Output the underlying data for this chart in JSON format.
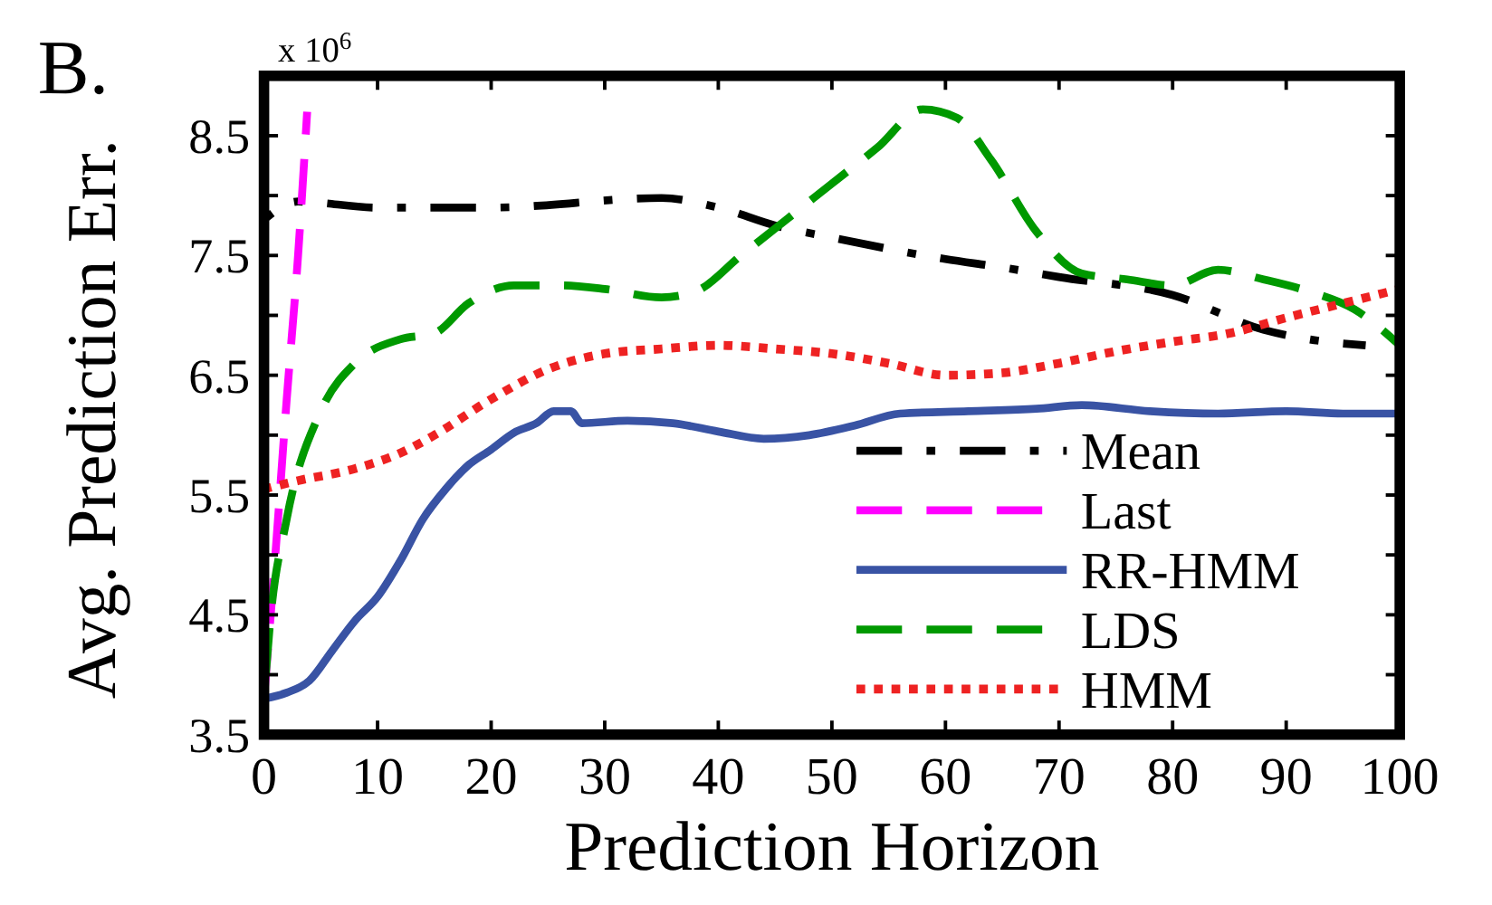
{
  "chart_data": {
    "type": "line",
    "title": "B.",
    "xlabel": "Prediction Horizon",
    "ylabel": "Avg. Prediction Err.",
    "annotations": [
      "x 10$^{6}$"
    ],
    "xlim": [
      0,
      100
    ],
    "xticks": [
      0,
      10,
      20,
      30,
      40,
      50,
      60,
      70,
      80,
      90,
      100
    ],
    "ylim": [
      3.5,
      9.0
    ],
    "yticks": [
      3.5,
      {
        "value": 4,
        "label": null
      },
      4.5,
      {
        "value": 5,
        "label": null
      },
      5.5,
      {
        "value": 6,
        "label": null
      },
      6.5,
      {
        "value": 7,
        "label": null
      },
      7.5,
      {
        "value": 8,
        "label": null
      },
      8.5
    ],
    "grid": false,
    "legend": "bottom right",
    "marker": "none",
    "series": [
      {
        "name": "Mean",
        "color": "#000000",
        "line_style": "dashdot",
        "x": [
          0,
          3,
          10,
          20,
          35,
          40,
          45,
          50,
          60,
          65,
          70,
          80,
          88,
          92,
          97
        ],
        "values": [
          7.8,
          7.95,
          7.9,
          7.9,
          7.98,
          7.9,
          7.75,
          7.65,
          7.47,
          7.4,
          7.32,
          7.17,
          6.88,
          6.8,
          6.75
        ]
      },
      {
        "name": "Last",
        "color": "#ff00ff",
        "line_style": "dashed",
        "x": [
          0,
          1,
          2,
          3,
          3.8
        ],
        "values": [
          3.8,
          5.0,
          6.3,
          7.5,
          8.7
        ]
      },
      {
        "name": "RR-HMM",
        "color": "#3953a4",
        "line_style": "solid",
        "x": [
          0,
          2,
          4,
          6,
          8,
          10,
          12,
          14,
          16,
          18,
          20,
          22,
          24,
          25.5,
          27,
          28,
          32,
          36,
          40,
          44,
          48,
          52,
          56,
          62,
          68,
          72,
          78,
          84,
          90,
          95,
          100
        ],
        "values": [
          3.8,
          3.85,
          3.95,
          4.2,
          4.45,
          4.65,
          4.95,
          5.3,
          5.55,
          5.75,
          5.88,
          6.02,
          6.1,
          6.2,
          6.2,
          6.1,
          6.12,
          6.1,
          6.03,
          5.97,
          6.0,
          6.08,
          6.18,
          6.2,
          6.22,
          6.25,
          6.2,
          6.18,
          6.2,
          6.18,
          6.18
        ]
      },
      {
        "name": "LDS",
        "color": "#009900",
        "line_style": "dashed",
        "x": [
          0,
          0.5,
          2,
          5,
          8,
          12,
          15,
          18,
          22,
          26,
          30,
          35,
          38,
          42,
          46,
          50,
          54,
          58,
          61,
          64,
          68,
          72,
          76,
          80,
          84,
          88,
          92,
          96,
          100
        ],
        "values": [
          3.8,
          4.4,
          5.3,
          6.2,
          6.6,
          6.8,
          6.85,
          7.1,
          7.25,
          7.25,
          7.22,
          7.15,
          7.2,
          7.5,
          7.8,
          8.1,
          8.4,
          8.72,
          8.65,
          8.3,
          7.7,
          7.35,
          7.3,
          7.25,
          7.38,
          7.3,
          7.2,
          7.05,
          6.75
        ]
      },
      {
        "name": "HMM",
        "color": "#ee2222",
        "line_style": "dotted",
        "x": [
          0,
          3,
          8,
          12,
          15,
          20,
          25,
          30,
          35,
          40,
          45,
          50,
          55,
          60,
          65,
          70,
          75,
          80,
          85,
          90,
          95,
          100
        ],
        "values": [
          5.55,
          5.62,
          5.72,
          5.85,
          6.0,
          6.3,
          6.55,
          6.68,
          6.72,
          6.75,
          6.72,
          6.68,
          6.6,
          6.5,
          6.52,
          6.6,
          6.7,
          6.78,
          6.85,
          6.98,
          7.1,
          7.22
        ]
      }
    ]
  }
}
